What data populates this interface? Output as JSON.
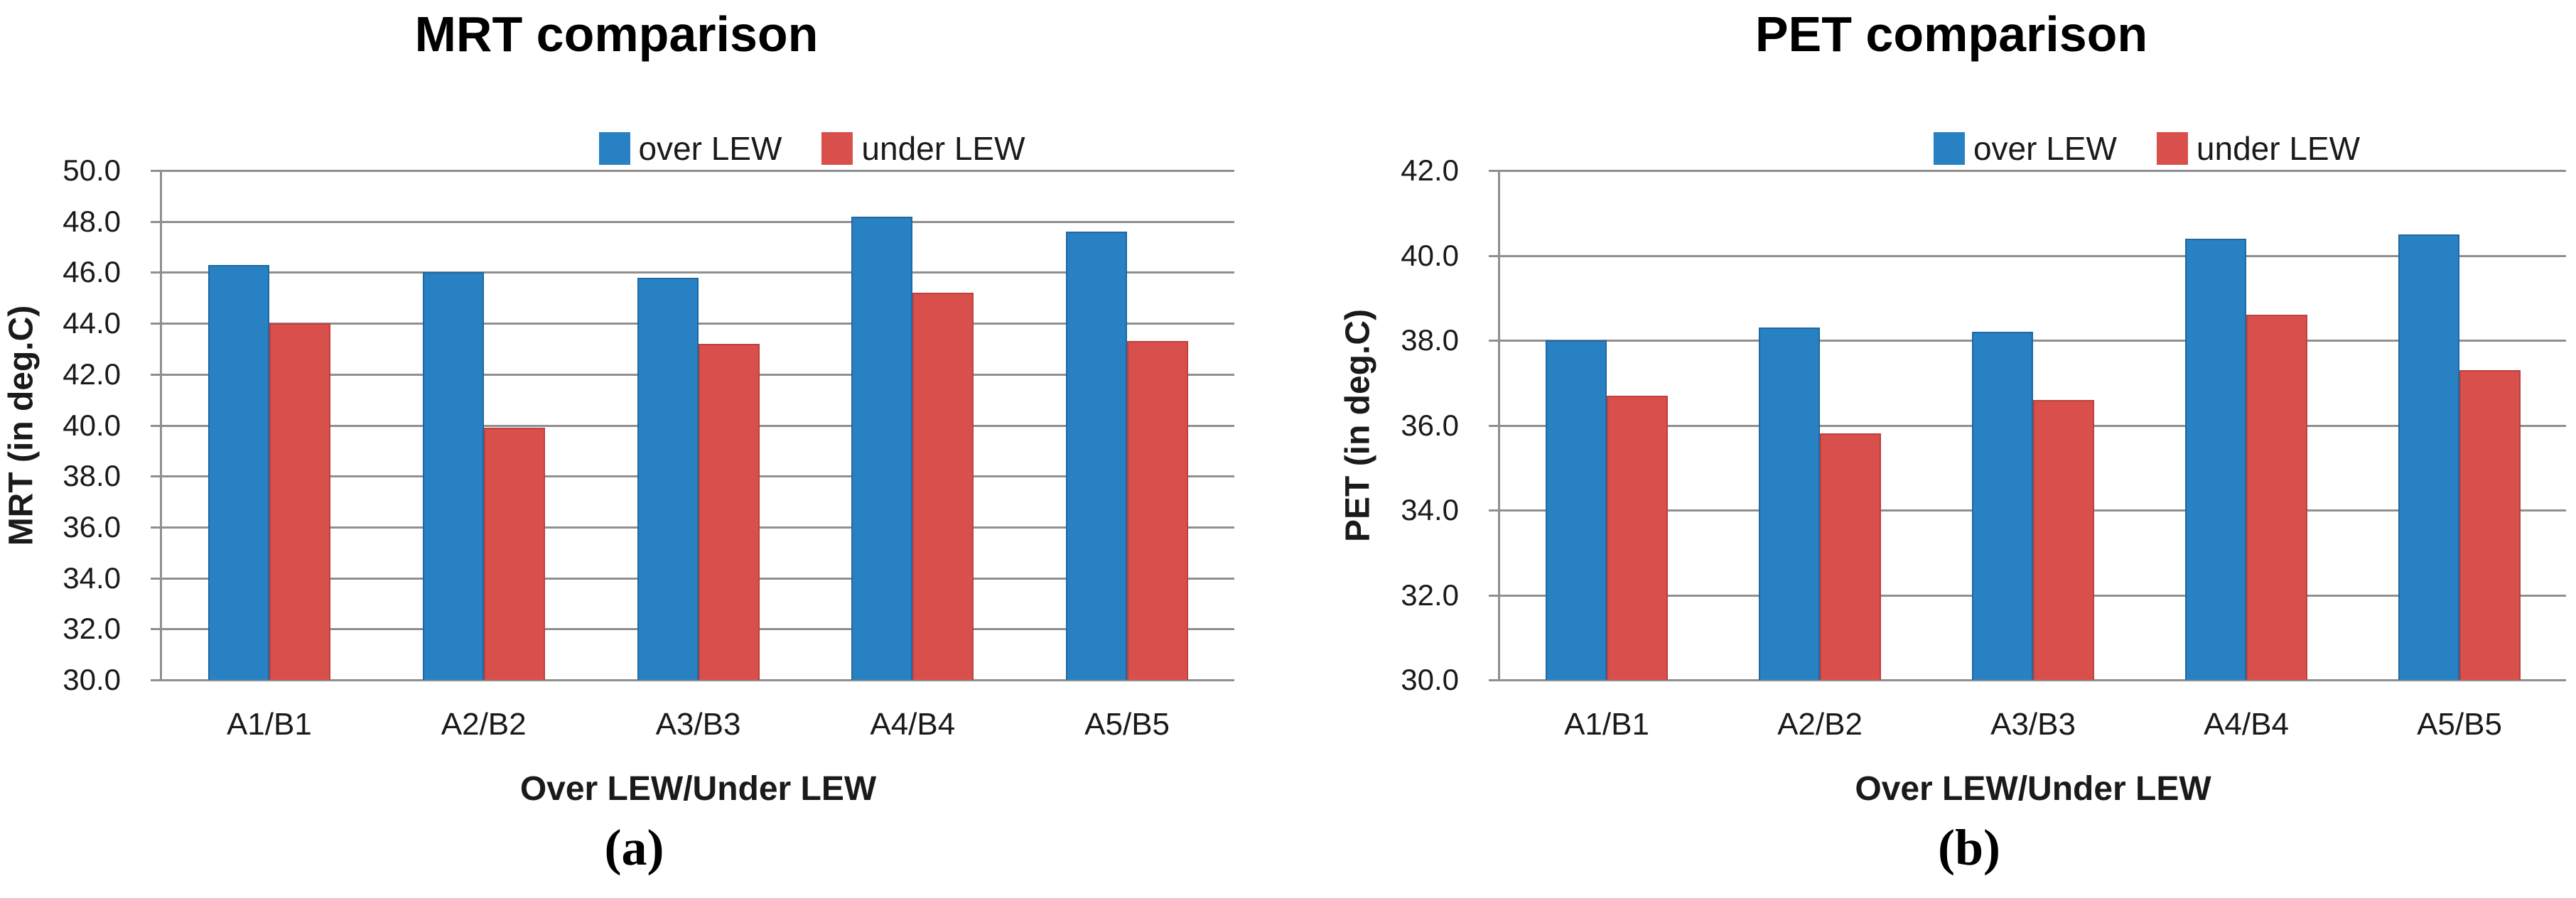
{
  "chart_data": [
    {
      "type": "bar",
      "title": "MRT comparison",
      "ylabel": "MRT (in deg.C)",
      "xlabel": "Over LEW/Under LEW",
      "caption": "(a)",
      "categories": [
        "A1/B1",
        "A2/B2",
        "A3/B3",
        "A4/B4",
        "A5/B5"
      ],
      "series": [
        {
          "name": "over LEW",
          "color": "#2781C3",
          "border_color": "#2068A0",
          "values": [
            46.3,
            46.0,
            45.8,
            48.2,
            47.6
          ]
        },
        {
          "name": "under LEW",
          "color": "#D94F4B",
          "border_color": "#BE413E",
          "values": [
            44.0,
            39.9,
            43.2,
            45.2,
            43.3
          ]
        }
      ],
      "ylim": [
        30.0,
        50.0
      ],
      "ytick_step": 2.0,
      "ytick_format_decimals": 1,
      "grid": true,
      "legend_position": "top"
    },
    {
      "type": "bar",
      "title": "PET comparison",
      "ylabel": "PET (in deg.C)",
      "xlabel": "Over LEW/Under LEW",
      "caption": "(b)",
      "categories": [
        "A1/B1",
        "A2/B2",
        "A3/B3",
        "A4/B4",
        "A5/B5"
      ],
      "series": [
        {
          "name": "over LEW",
          "color": "#2781C3",
          "border_color": "#2068A0",
          "values": [
            38.0,
            38.3,
            38.2,
            40.4,
            40.5
          ]
        },
        {
          "name": "under LEW",
          "color": "#D94F4B",
          "border_color": "#BE413E",
          "values": [
            36.7,
            35.8,
            36.6,
            38.6,
            37.3
          ]
        }
      ],
      "ylim": [
        30.0,
        42.0
      ],
      "ytick_step": 2.0,
      "ytick_format_decimals": 1,
      "grid": true,
      "legend_position": "top"
    }
  ],
  "colors": {
    "gridline": "#8f8f8f",
    "text": "#1a1a1a"
  }
}
